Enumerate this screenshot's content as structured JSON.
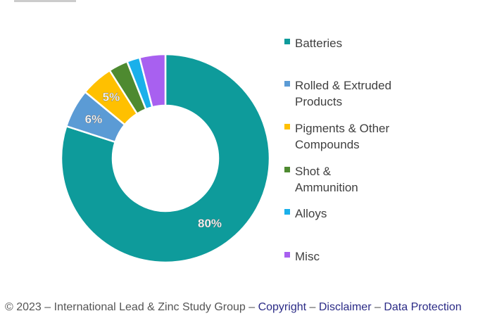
{
  "chart_data": {
    "type": "pie",
    "donut": true,
    "title": "",
    "categories": [
      "Batteries",
      "Rolled & Extruded Products",
      "Pigments & Other Compounds",
      "Shot & Ammunition",
      "Alloys",
      "Misc"
    ],
    "values": [
      80,
      6,
      5,
      3,
      2,
      4
    ],
    "data_labels": [
      "80%",
      "6%",
      "5%",
      "",
      "",
      ""
    ],
    "colors": [
      "#0e9b9b",
      "#5b9bd5",
      "#ffc000",
      "#4e8a30",
      "#1ab0ea",
      "#a860f0"
    ],
    "legend_position": "right"
  },
  "footer": {
    "prefix": "© 2023 – International Lead & Zinc Study Group – ",
    "copyright": "Copyright",
    "sep1": " – ",
    "disclaimer": "Disclaimer",
    "sep2": " – ",
    "data_protection": "Data Protection"
  }
}
